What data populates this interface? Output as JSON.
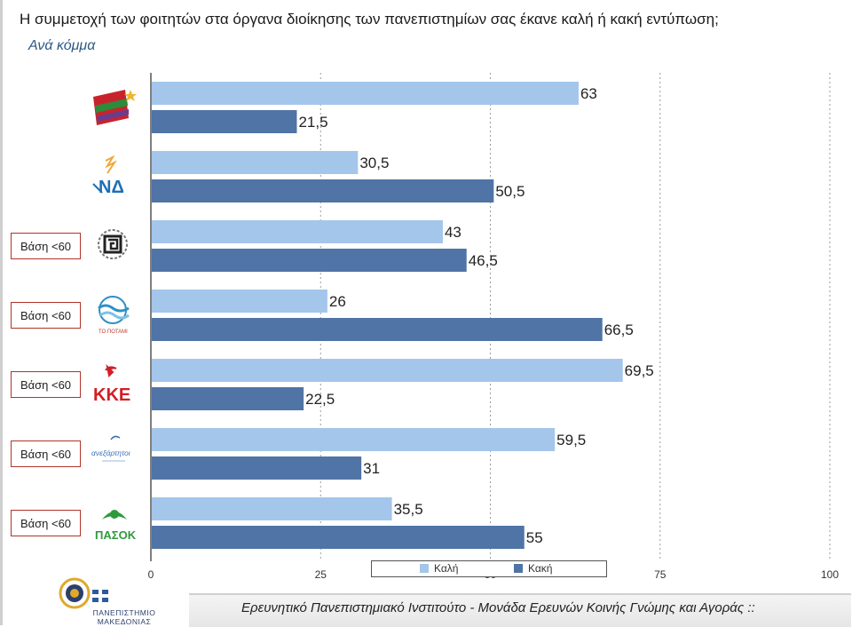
{
  "title": "Η συμμετοχή των φοιτητών στα όργανα διοίκησης των πανεπιστημίων σας έκανε καλή ή κακή εντύπωση;",
  "subtitle": "Ανά κόμμα",
  "badge_label": "Βάση <60",
  "footer": "Ερευνητικό Πανεπιστημιακό Ινστιτούτο - Μονάδα Ερευνών Κοινής Γνώμης και Αγοράς ::",
  "university_logo_text": "ΠΑΝΕΠΙΣΤΗΜΙΟ ΜΑΚΕΔΟΝΙΑΣ",
  "colors": {
    "good": "#a4c6ea",
    "bad": "#4f74a5",
    "grid": "#9a9a9a",
    "badge_border": "#b0342a"
  },
  "parties": [
    {
      "logo": "syriza-logo",
      "logo_text": "",
      "badge": false
    },
    {
      "logo": "nd-logo",
      "logo_text": "ΝΔ",
      "badge": false
    },
    {
      "logo": "xa-logo",
      "logo_text": "",
      "badge": true
    },
    {
      "logo": "potami-logo",
      "logo_text": "ΤΟ ΠΟΤΑΜΙ",
      "badge": true
    },
    {
      "logo": "kke-logo",
      "logo_text": "ΚΚΕ",
      "badge": true
    },
    {
      "logo": "anel-logo",
      "logo_text": "ανεξάρτητοι",
      "badge": true
    },
    {
      "logo": "pasok-logo",
      "logo_text": "ΠΑΣΟΚ",
      "badge": true
    }
  ],
  "chart_data": {
    "type": "bar",
    "orientation": "horizontal",
    "series": [
      {
        "name": "Καλή",
        "values": [
          63,
          30.5,
          43,
          26,
          69.5,
          59.5,
          35.5
        ]
      },
      {
        "name": "Κακή",
        "values": [
          21.5,
          50.5,
          46.5,
          66.5,
          22.5,
          31,
          55
        ]
      }
    ],
    "value_labels": [
      [
        "63",
        "30,5",
        "43",
        "26",
        "69,5",
        "59,5",
        "35,5"
      ],
      [
        "21,5",
        "50,5",
        "46,5",
        "66,5",
        "22,5",
        "31",
        "55"
      ]
    ],
    "xlim": [
      0,
      100
    ],
    "xticks": [
      0,
      25,
      50,
      75,
      100
    ],
    "xtick_labels": [
      "0",
      "25",
      "50",
      "75",
      "100"
    ],
    "grid": true,
    "legend_position": "bottom-center"
  }
}
